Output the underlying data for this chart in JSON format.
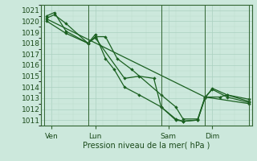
{
  "title": "Pression niveau de la mer( hPa )",
  "ylabel_values": [
    1011,
    1012,
    1013,
    1014,
    1015,
    1016,
    1017,
    1018,
    1019,
    1020,
    1021
  ],
  "ylim": [
    1010.5,
    1021.5
  ],
  "bg_color": "#cce8dc",
  "grid_major_color": "#aad0c0",
  "grid_minor_color": "#bcdccc",
  "line_color": "#1a6020",
  "vline_color": "#336633",
  "xtick_labels": [
    "Ven",
    "Lun",
    "Sam",
    "Dim"
  ],
  "xtick_positions": [
    0.5,
    3.5,
    8.5,
    11.5
  ],
  "vline_positions": [
    0,
    3,
    8,
    11,
    14
  ],
  "xlim": [
    -0.2,
    14.2
  ],
  "line1_x": [
    0.2,
    0.7,
    1.5,
    3.0,
    3.5,
    4.2,
    5.0,
    6.0,
    8.0,
    9.0,
    9.5,
    10.5,
    11.0,
    11.5,
    12.5,
    14.0
  ],
  "line1_y": [
    1020.3,
    1020.6,
    1019.8,
    1018.0,
    1018.6,
    1018.6,
    1016.6,
    1015.6,
    1013.3,
    1012.2,
    1011.1,
    1011.1,
    1013.1,
    1013.8,
    1013.1,
    1012.6
  ],
  "line2_x": [
    0.2,
    1.5,
    3.0,
    3.5,
    4.2,
    4.8,
    5.5,
    6.5,
    8.0,
    9.0,
    9.5,
    10.5,
    11.0,
    12.0,
    12.5,
    14.0
  ],
  "line2_y": [
    1020.0,
    1018.9,
    1018.0,
    1018.8,
    1016.6,
    1015.6,
    1014.0,
    1013.3,
    1012.2,
    1011.0,
    1010.9,
    1011.0,
    1013.1,
    1013.1,
    1013.3,
    1012.7
  ],
  "line3_x": [
    0.2,
    11.0,
    14.0
  ],
  "line3_y": [
    1020.2,
    1013.1,
    1012.5
  ],
  "line4_x": [
    0.2,
    0.7,
    1.5,
    3.0,
    3.5,
    5.5,
    6.5,
    7.5,
    8.0,
    9.0,
    9.5,
    10.5,
    11.0,
    11.5,
    12.5,
    14.0
  ],
  "line4_y": [
    1020.5,
    1020.8,
    1019.1,
    1018.0,
    1018.5,
    1014.8,
    1015.0,
    1014.8,
    1012.2,
    1011.1,
    1010.9,
    1011.0,
    1013.0,
    1013.9,
    1013.3,
    1012.9
  ]
}
